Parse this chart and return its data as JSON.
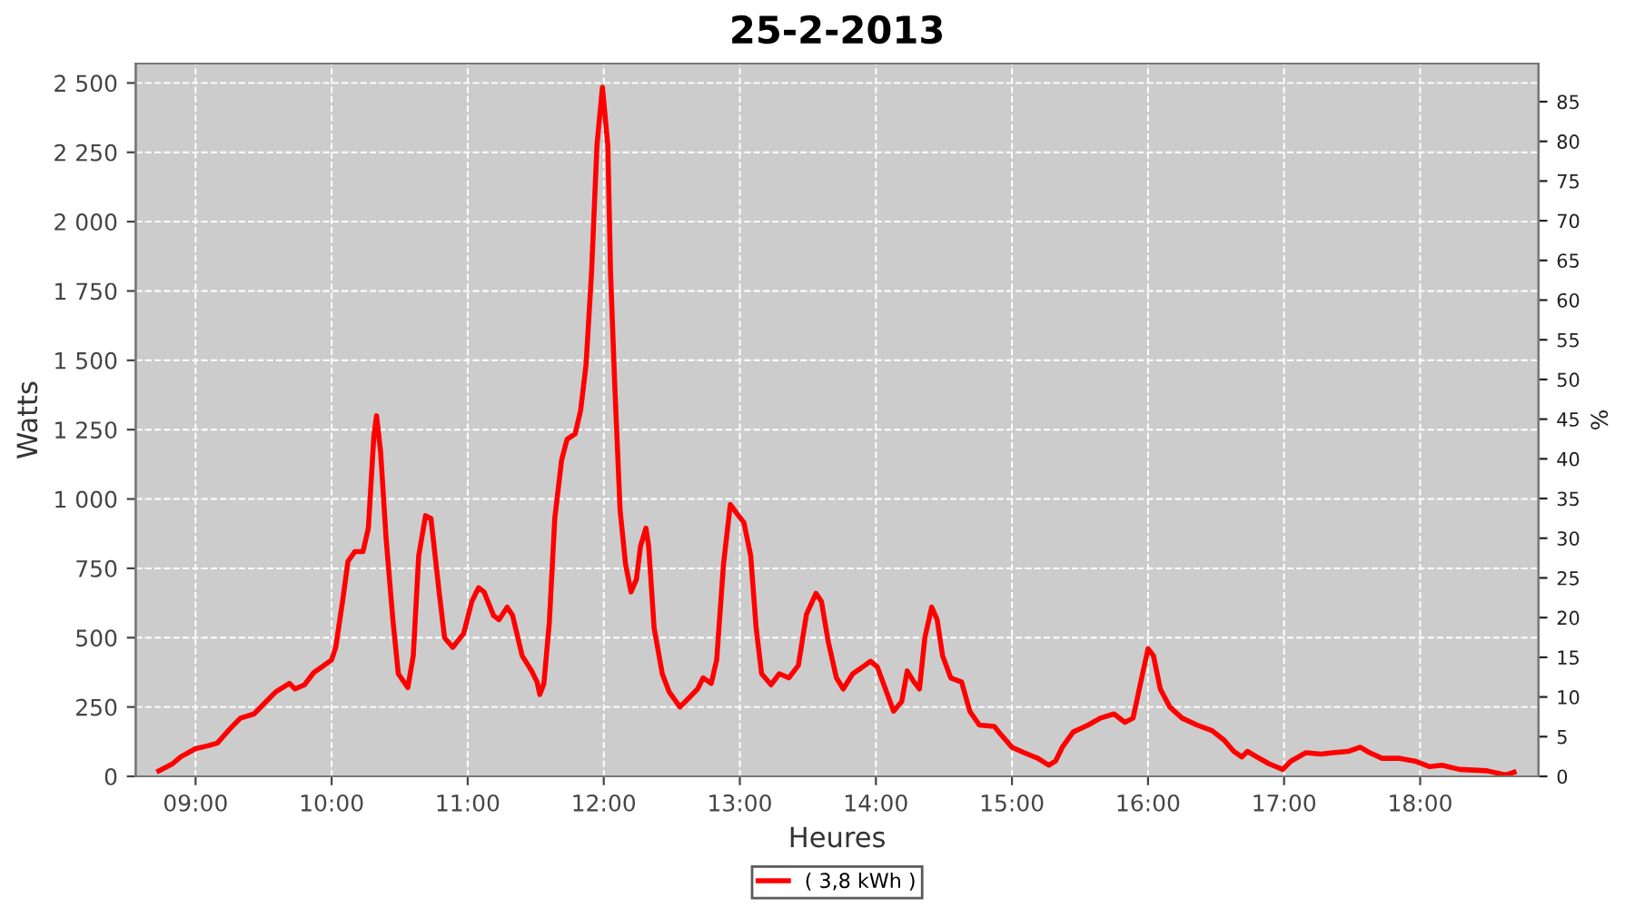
{
  "chart_data": {
    "type": "line",
    "title": "25-2-2013",
    "xlabel": "Heures",
    "ylabel": "Watts",
    "y2label": "%",
    "xlim": [
      8.56,
      18.87
    ],
    "xticks": [
      {
        "value": 9,
        "label": "09:00"
      },
      {
        "value": 10,
        "label": "10:00"
      },
      {
        "value": 11,
        "label": "11:00"
      },
      {
        "value": 12,
        "label": "12:00"
      },
      {
        "value": 13,
        "label": "13:00"
      },
      {
        "value": 14,
        "label": "14:00"
      },
      {
        "value": 15,
        "label": "15:00"
      },
      {
        "value": 16,
        "label": "16:00"
      },
      {
        "value": 17,
        "label": "17:00"
      },
      {
        "value": 18,
        "label": "18:00"
      }
    ],
    "ylim": [
      0,
      2570
    ],
    "yticks": [
      0,
      {
        "value": 250,
        "label": "250"
      },
      {
        "value": 500,
        "label": "500"
      },
      {
        "value": 750,
        "label": "750"
      },
      {
        "value": 1000,
        "label": "1 000"
      },
      {
        "value": 1250,
        "label": "1 250"
      },
      {
        "value": 1500,
        "label": "1 500"
      },
      {
        "value": 1750,
        "label": "1 750"
      },
      {
        "value": 2000,
        "label": "2 000"
      },
      {
        "value": 2250,
        "label": "2 250"
      },
      {
        "value": 2500,
        "label": "2 500"
      }
    ],
    "y2lim": [
      0,
      89.8
    ],
    "y2ticks": [
      0,
      5,
      10,
      15,
      20,
      25,
      30,
      35,
      40,
      45,
      50,
      55,
      60,
      65,
      70,
      75,
      80,
      85
    ],
    "grid": true,
    "legend": "bottom",
    "marker": "none",
    "line_style": "solid",
    "series": [
      {
        "name": "( 3,8 kWh )",
        "color": "#ff0000",
        "x": [
          8.73,
          8.83,
          8.89,
          9.0,
          9.09,
          9.16,
          9.25,
          9.33,
          9.43,
          9.52,
          9.59,
          9.69,
          9.73,
          9.8,
          9.87,
          9.93,
          10.0,
          10.03,
          10.08,
          10.12,
          10.17,
          10.23,
          10.27,
          10.31,
          10.33,
          10.36,
          10.4,
          10.45,
          10.49,
          10.56,
          10.6,
          10.64,
          10.69,
          10.73,
          10.79,
          10.83,
          10.89,
          10.97,
          11.03,
          11.08,
          11.12,
          11.19,
          11.23,
          11.29,
          11.33,
          11.4,
          11.47,
          11.51,
          11.53,
          11.56,
          11.6,
          11.64,
          11.69,
          11.73,
          11.79,
          11.83,
          11.87,
          11.91,
          11.95,
          11.99,
          12.03,
          12.05,
          12.08,
          12.12,
          12.16,
          12.2,
          12.24,
          12.27,
          12.31,
          12.33,
          12.37,
          12.43,
          12.48,
          12.56,
          12.63,
          12.69,
          12.73,
          12.79,
          12.83,
          12.88,
          12.93,
          12.99,
          13.03,
          13.08,
          13.12,
          13.16,
          13.23,
          13.29,
          13.36,
          13.43,
          13.49,
          13.56,
          13.6,
          13.65,
          13.71,
          13.76,
          13.83,
          13.89,
          13.96,
          14.01,
          14.07,
          14.13,
          14.19,
          14.23,
          14.28,
          14.32,
          14.36,
          14.41,
          14.45,
          14.49,
          14.55,
          14.63,
          14.69,
          14.76,
          14.87,
          14.92,
          15.0,
          15.09,
          15.19,
          15.27,
          15.32,
          15.37,
          15.45,
          15.56,
          15.65,
          15.75,
          15.83,
          15.89,
          15.96,
          16.0,
          16.04,
          16.09,
          16.16,
          16.25,
          16.36,
          16.47,
          16.56,
          16.63,
          16.69,
          16.73,
          16.8,
          16.89,
          16.99,
          17.05,
          17.16,
          17.27,
          17.36,
          17.47,
          17.56,
          17.63,
          17.72,
          17.85,
          17.96,
          18.07,
          18.16,
          18.29,
          18.49,
          18.63,
          18.69
        ],
        "values": [
          20,
          45,
          70,
          100,
          110,
          120,
          170,
          210,
          225,
          270,
          305,
          335,
          315,
          330,
          375,
          395,
          420,
          465,
          630,
          775,
          810,
          810,
          895,
          1225,
          1300,
          1170,
          860,
          565,
          370,
          320,
          435,
          795,
          940,
          930,
          665,
          500,
          465,
          515,
          630,
          680,
          665,
          580,
          565,
          610,
          580,
          435,
          380,
          340,
          295,
          335,
          555,
          930,
          1140,
          1215,
          1235,
          1320,
          1485,
          1815,
          2275,
          2485,
          2275,
          1815,
          1420,
          960,
          765,
          665,
          710,
          830,
          895,
          830,
          535,
          370,
          305,
          250,
          285,
          315,
          355,
          335,
          420,
          765,
          980,
          940,
          915,
          795,
          535,
          370,
          330,
          370,
          355,
          400,
          585,
          660,
          630,
          485,
          355,
          315,
          370,
          390,
          415,
          395,
          315,
          235,
          270,
          380,
          340,
          315,
          500,
          610,
          565,
          435,
          355,
          340,
          235,
          185,
          180,
          150,
          105,
          85,
          65,
          40,
          55,
          105,
          160,
          185,
          210,
          225,
          195,
          210,
          370,
          460,
          435,
          315,
          250,
          210,
          185,
          165,
          130,
          90,
          70,
          90,
          70,
          45,
          25,
          55,
          85,
          80,
          85,
          90,
          105,
          85,
          65,
          65,
          55,
          35,
          40,
          25,
          20,
          5,
          15
        ]
      }
    ]
  }
}
